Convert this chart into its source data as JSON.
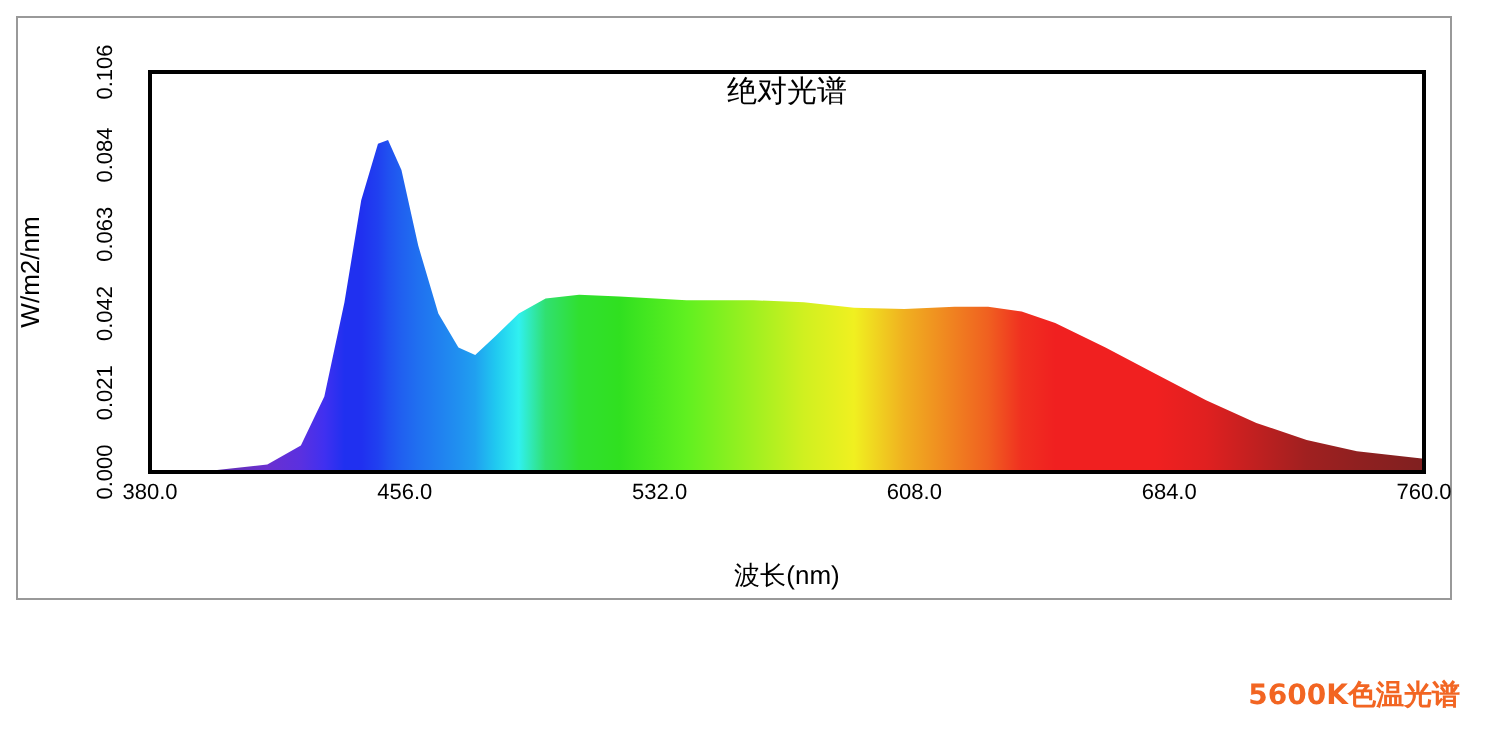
{
  "chart_data": {
    "type": "area",
    "title": "绝对光谱",
    "xlabel": "波长(nm)",
    "ylabel": "W/m2/nm",
    "annotations": [
      "5600K色温光谱"
    ],
    "x": [
      380,
      400,
      415,
      425,
      432,
      438,
      443,
      448,
      451,
      455,
      460,
      466,
      472,
      477,
      483,
      490,
      498,
      508,
      520,
      540,
      560,
      575,
      590,
      605,
      620,
      630,
      640,
      650,
      665,
      680,
      695,
      710,
      725,
      740,
      760
    ],
    "series": [
      {
        "values": [
          0,
          0.0005,
          0.002,
          0.007,
          0.02,
          0.045,
          0.072,
          0.087,
          0.088,
          0.08,
          0.06,
          0.042,
          0.033,
          0.031,
          0.036,
          0.042,
          0.046,
          0.047,
          0.0465,
          0.0455,
          0.0455,
          0.045,
          0.0435,
          0.0432,
          0.0438,
          0.0438,
          0.0425,
          0.0395,
          0.033,
          0.026,
          0.019,
          0.013,
          0.0085,
          0.0055,
          0.0035
        ],
        "colors": [
          "#5a2a8a",
          "#6030b0",
          "#6a30d0",
          "#5a30e0",
          "#4030f0",
          "#2030f0",
          "#2030f0",
          "#2040f0",
          "#2050f0",
          "#2060f0",
          "#2070f0",
          "#2080f0",
          "#2090f0",
          "#20a0f0",
          "#20c8f0",
          "#30f0f0",
          "#30e070",
          "#30e030",
          "#30e020",
          "#60f020",
          "#a0f020",
          "#d0f020",
          "#f0f020",
          "#f0b020",
          "#f08020",
          "#f06020",
          "#f03020",
          "#f02020",
          "#f02020",
          "#f02020",
          "#e02020",
          "#c02020",
          "#a02020",
          "#902020",
          "#802020"
        ]
      }
    ],
    "xlim": [
      380,
      760
    ],
    "xticks": [
      {
        "value": 380,
        "label": "380.0"
      },
      {
        "value": 456,
        "label": "456.0"
      },
      {
        "value": 532,
        "label": "532.0"
      },
      {
        "value": 608,
        "label": "608.0"
      },
      {
        "value": 684,
        "label": "684.0"
      },
      {
        "value": 760,
        "label": "760.0"
      }
    ],
    "ylim": [
      0,
      0.106
    ],
    "yticks": [
      {
        "value": 0,
        "label": "0.000"
      },
      {
        "value": 0.021,
        "label": "0.021"
      },
      {
        "value": 0.042,
        "label": "0.042"
      },
      {
        "value": 0.063,
        "label": "0.063"
      },
      {
        "value": 0.084,
        "label": "0.084"
      },
      {
        "value": 0.106,
        "label": "0.106"
      }
    ]
  }
}
